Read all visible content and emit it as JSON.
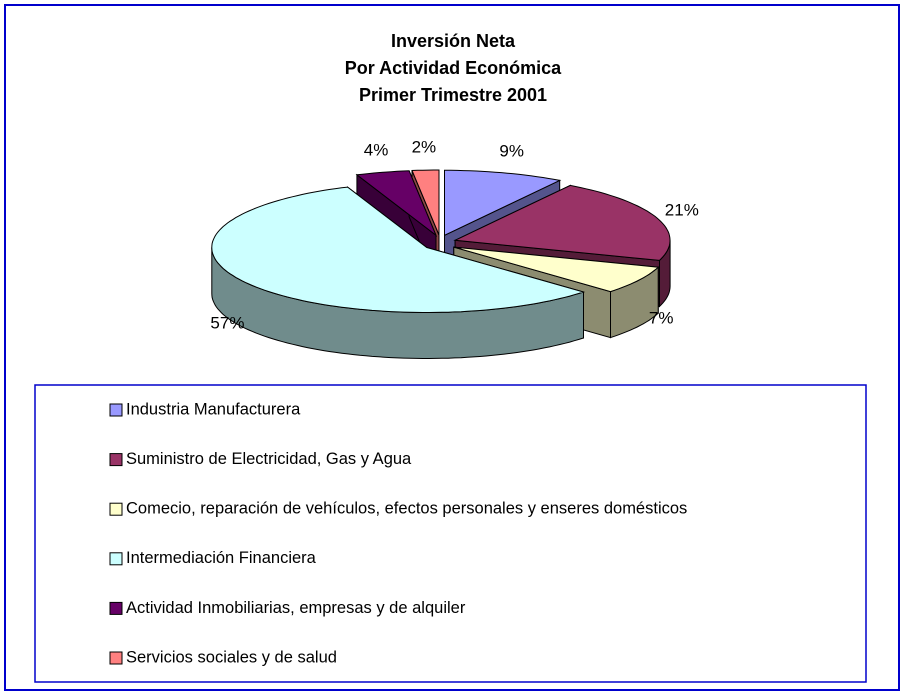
{
  "chart_data": {
    "type": "pie",
    "title": [
      "Inversión Neta",
      "Por Actividad Económica",
      "Primer Trimestre 2001"
    ],
    "categories": [
      "Industria Manufacturera",
      "Suministro de Electricidad, Gas y Agua",
      "Comecio, reparación de vehículos, efectos personales y enseres domésticos",
      "Intermediación Financiera",
      "Actividad Inmobiliarias, empresas y de alquiler",
      "Servicios sociales y de salud"
    ],
    "values": [
      9,
      21,
      7,
      57,
      4,
      2
    ],
    "value_labels": [
      "9%",
      "21%",
      "7%",
      "57%",
      "4%",
      "2%"
    ],
    "colors": [
      "#9999ff",
      "#993366",
      "#ffffcc",
      "#ccffff",
      "#660066",
      "#ff8080"
    ]
  }
}
